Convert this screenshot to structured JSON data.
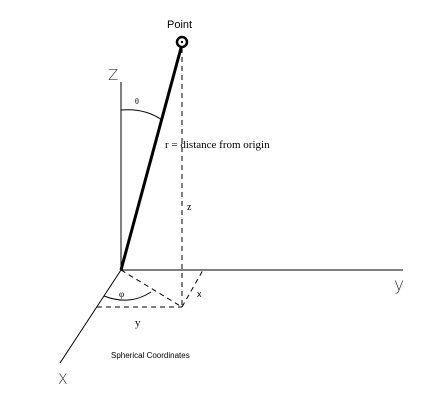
{
  "diagram": {
    "point_label": "Point",
    "axes": {
      "z": "Z",
      "y": "y",
      "x": "X"
    },
    "angle_theta": "θ",
    "angle_phi": "φ",
    "r_label": "r = distance from origin",
    "z_component": "z",
    "x_component": "x",
    "y_component": "y",
    "caption": "Spherical Coordinates"
  }
}
